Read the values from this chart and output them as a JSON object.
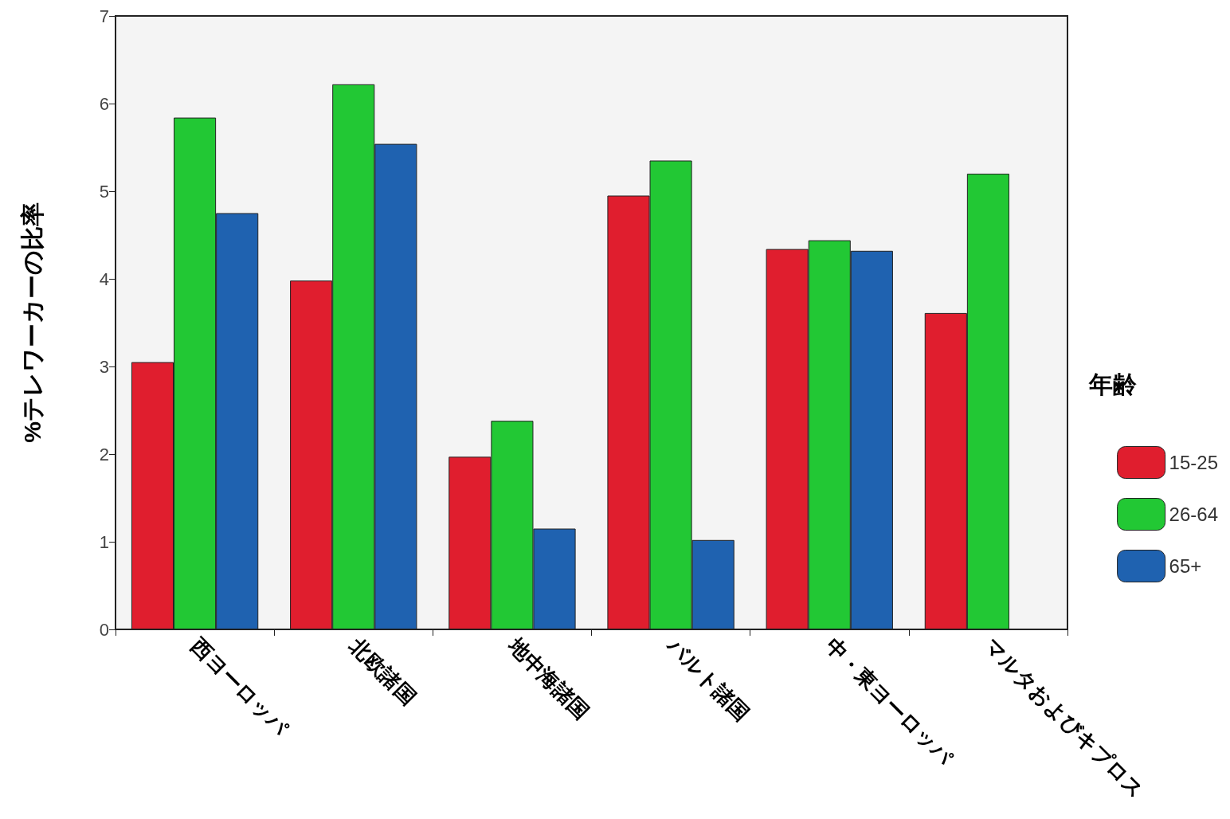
{
  "chart_data": {
    "type": "bar",
    "ylabel": "%テレワーカーの比率",
    "legend_title": "年齢",
    "categories": [
      "西ヨーロッパ",
      "北欧諸国",
      "地中海諸国",
      "バルト諸国",
      "中・東ヨーロッパ",
      "マルタおよびキプロス"
    ],
    "series": [
      {
        "name": "15-25",
        "color": "#e01e2e",
        "values": [
          3.05,
          3.98,
          1.97,
          4.95,
          4.34,
          3.61
        ]
      },
      {
        "name": "26-64",
        "color": "#22c834",
        "values": [
          5.84,
          6.22,
          2.38,
          5.35,
          4.44,
          5.2
        ]
      },
      {
        "name": "65+",
        "color": "#1f62b0",
        "values": [
          4.75,
          5.54,
          1.15,
          1.02,
          4.32,
          null
        ]
      }
    ],
    "ylim": [
      0,
      7
    ],
    "yticks": [
      0,
      1,
      2,
      3,
      4,
      5,
      6,
      7
    ],
    "grid": false,
    "legend": "right"
  }
}
